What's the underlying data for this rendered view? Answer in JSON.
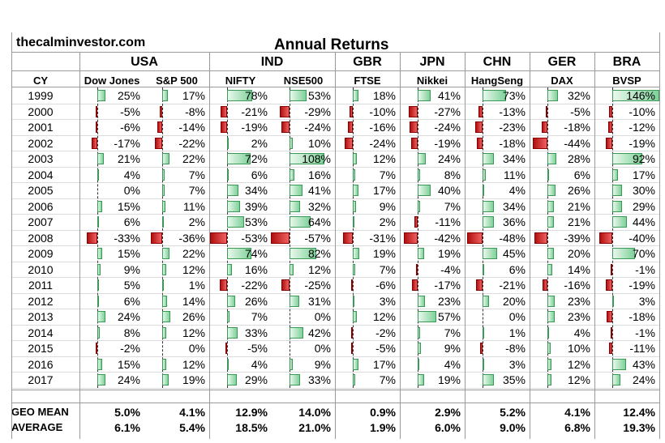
{
  "header": {
    "site": "thecalminvestor.com",
    "title": "Annual Returns",
    "year_label": "CY"
  },
  "countries": [
    "USA",
    "IND",
    "GBR",
    "JPN",
    "CHN",
    "GER",
    "BRA"
  ],
  "indices": [
    "Dow Jones",
    "S&P 500",
    "NIFTY",
    "NSE500",
    "FTSE",
    "Nikkei",
    "HangSeng",
    "DAX",
    "BVSP"
  ],
  "summary": {
    "geo_mean_label": "GEO MEAN",
    "geo_mean": [
      "5.0%",
      "4.1%",
      "12.9%",
      "14.0%",
      "0.9%",
      "2.9%",
      "5.2%",
      "4.1%",
      "12.4%"
    ],
    "average_label": "AVERAGE",
    "average": [
      "6.1%",
      "5.4%",
      "18.5%",
      "21.0%",
      "1.9%",
      "6.0%",
      "9.0%",
      "6.8%",
      "19.3%"
    ]
  },
  "colors": {
    "positive": "#7fd19a",
    "negative": "#e03030"
  },
  "chart_data": {
    "type": "table",
    "title": "Annual Returns",
    "columns": [
      "Dow Jones",
      "S&P 500",
      "NIFTY",
      "NSE500",
      "FTSE",
      "Nikkei",
      "HangSeng",
      "DAX",
      "BVSP"
    ],
    "years": [
      "1999",
      "2000",
      "2001",
      "2002",
      "2003",
      "2004",
      "2005",
      "2006",
      "2007",
      "2008",
      "2009",
      "2010",
      "2011",
      "2012",
      "2013",
      "2014",
      "2015",
      "2016",
      "2017"
    ],
    "values": [
      [
        25,
        17,
        78,
        53,
        18,
        41,
        73,
        32,
        146
      ],
      [
        -5,
        -8,
        -21,
        -29,
        -10,
        -27,
        -13,
        -5,
        -10
      ],
      [
        -6,
        -14,
        -19,
        -24,
        -16,
        -24,
        -23,
        -18,
        -12
      ],
      [
        -17,
        -22,
        2,
        10,
        -24,
        -19,
        -18,
        -44,
        -19
      ],
      [
        21,
        22,
        72,
        108,
        12,
        24,
        34,
        28,
        92
      ],
      [
        4,
        7,
        6,
        16,
        7,
        8,
        11,
        6,
        17
      ],
      [
        0,
        7,
        34,
        41,
        17,
        40,
        4,
        26,
        30
      ],
      [
        15,
        11,
        39,
        32,
        9,
        7,
        34,
        21,
        29
      ],
      [
        6,
        2,
        53,
        64,
        2,
        -11,
        36,
        21,
        44
      ],
      [
        -33,
        -36,
        -53,
        -57,
        -31,
        -42,
        -48,
        -39,
        -40
      ],
      [
        15,
        22,
        74,
        82,
        19,
        19,
        45,
        20,
        70
      ],
      [
        9,
        12,
        16,
        12,
        7,
        -4,
        6,
        14,
        -1
      ],
      [
        5,
        1,
        -22,
        -25,
        -6,
        -17,
        -21,
        -16,
        -19
      ],
      [
        6,
        14,
        26,
        31,
        3,
        23,
        20,
        23,
        3
      ],
      [
        24,
        26,
        7,
        0,
        12,
        57,
        0,
        23,
        -18
      ],
      [
        8,
        12,
        33,
        42,
        -2,
        7,
        1,
        4,
        -1
      ],
      [
        -2,
        0,
        -5,
        0,
        -5,
        9,
        -8,
        10,
        -11
      ],
      [
        15,
        12,
        4,
        9,
        17,
        4,
        3,
        12,
        43
      ],
      [
        24,
        19,
        29,
        33,
        7,
        19,
        35,
        12,
        24
      ]
    ]
  }
}
